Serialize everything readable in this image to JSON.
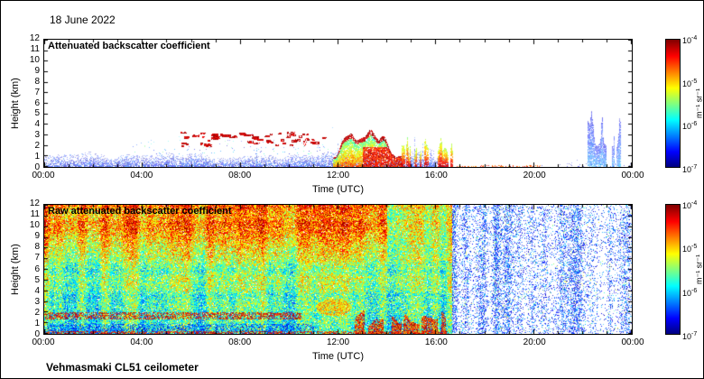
{
  "page": {
    "date_label": "18 June 2022",
    "footer": "Vehmasmaki CL51 ceilometer"
  },
  "colors": {
    "axis": "#000000",
    "background": "#ffffff",
    "jet_stops": [
      "#000080 0%",
      "#0000ff 12%",
      "#00ffff 37%",
      "#ffff00 62%",
      "#ff0000 87%",
      "#800000 100%"
    ]
  },
  "chart_data": [
    {
      "type": "heatmap",
      "title": "Attenuated backscatter coefficient",
      "xlabel": "Time (UTC)",
      "ylabel": "Height (km)",
      "x_range_hours": [
        0,
        24
      ],
      "y_range_km": [
        0,
        12
      ],
      "x_ticks": [
        "00:00",
        "04:00",
        "08:00",
        "12:00",
        "16:00",
        "20:00",
        "00:00"
      ],
      "y_ticks": [
        0,
        1,
        2,
        3,
        4,
        5,
        6,
        7,
        8,
        9,
        10,
        11,
        12
      ],
      "colorbar": {
        "scale": "log",
        "min_value": "1e-7",
        "max_value": "1e-4",
        "tick_exponents": [
          "-4",
          "-5",
          "-6",
          "-7"
        ],
        "unit": "m⁻¹ sr⁻¹",
        "colormap": "jet"
      },
      "background": "white below noise threshold",
      "features": [
        {
          "name": "surface aerosol layer",
          "hours": [
            0,
            16.5
          ],
          "height_km": [
            0,
            1.5
          ],
          "backscatter": "1e-7 to 1e-6",
          "render": {
            "kind": "speckle",
            "density": 0.8,
            "level": [
              0.02,
              0.26
            ],
            "pale": true
          }
        },
        {
          "name": "scattered aerosol specks",
          "hours": [
            3.5,
            11.8
          ],
          "height_km": [
            1.2,
            3.0
          ],
          "backscatter": "1e-7 to 1e-6",
          "render": {
            "kind": "speckle",
            "density": 0.05,
            "level": [
              0.05,
              0.5
            ],
            "pale": true
          }
        },
        {
          "name": "scattered low clouds",
          "hours": [
            5.5,
            11.5
          ],
          "height_km": [
            2.0,
            3.3
          ],
          "backscatter": "about 1e-4",
          "render": {
            "kind": "dashes",
            "count": 55,
            "level": [
              0.86,
              1.0
            ]
          }
        },
        {
          "name": "midday convective plume with cloud",
          "hours": [
            11.8,
            14.6
          ],
          "height_km": [
            0,
            4.0
          ],
          "backscatter": "1e-6 to 1e-4",
          "render": {
            "kind": "plume",
            "level": [
              0.45,
              1.0
            ]
          }
        },
        {
          "name": "afternoon broken cells",
          "hours": [
            14.6,
            16.7
          ],
          "height_km": [
            0,
            3.0
          ],
          "backscatter": "1e-6 to 1e-4",
          "render": {
            "kind": "columns",
            "gap": 0.45,
            "level": [
              0.4,
              0.95
            ],
            "pale": false
          }
        },
        {
          "name": "surface returns",
          "hours": [
            16.5,
            20.3
          ],
          "height_km": [
            0,
            0.25
          ],
          "backscatter": "about 1e-5",
          "render": {
            "kind": "speckle",
            "density": 0.5,
            "level": [
              0.7,
              0.95
            ],
            "pale": false
          }
        },
        {
          "name": "late evening weak echoes",
          "hours": [
            22.1,
            23.6
          ],
          "height_km": [
            0,
            5.5
          ],
          "backscatter": "1e-7 to 1e-6",
          "render": {
            "kind": "columns",
            "gap": 0.5,
            "level": [
              0.05,
              0.28
            ],
            "pale": true
          }
        },
        {
          "name": "night sparse near-surface",
          "hours": [
            20,
            24
          ],
          "height_km": [
            0,
            0.6
          ],
          "backscatter": "about 1e-7",
          "render": {
            "kind": "speckle",
            "density": 0.1,
            "level": [
              0.02,
              0.2
            ],
            "pale": true
          }
        }
      ]
    },
    {
      "type": "heatmap",
      "title": "Raw attenuated backscatter coefficient",
      "xlabel": "Time (UTC)",
      "ylabel": "Height (km)",
      "x_range_hours": [
        0,
        24
      ],
      "y_range_km": [
        0,
        12
      ],
      "x_ticks": [
        "00:00",
        "04:00",
        "08:00",
        "12:00",
        "16:00",
        "20:00",
        "00:00"
      ],
      "y_ticks": [
        0,
        1,
        2,
        3,
        4,
        5,
        6,
        7,
        8,
        9,
        10,
        11,
        12
      ],
      "colorbar": {
        "scale": "log",
        "min_value": "1e-7",
        "max_value": "1e-4",
        "tick_exponents": [
          "-4",
          "-5",
          "-6",
          "-7"
        ],
        "unit": "m⁻¹ sr⁻¹",
        "colormap": "jet"
      },
      "render": {
        "transition_hour": 16.6,
        "base": 0.4,
        "height_gradient": 0.22,
        "upper_boost": {
          "hours": [
            0,
            14
          ],
          "km_from": 6.5,
          "boost": 0.16
        },
        "speckle_density": 0.55
      },
      "features": [
        {
          "name": "daytime solar background noise",
          "hours": [
            0,
            16.6
          ],
          "height_km": [
            0,
            12
          ],
          "value": "green-yellow-orange noise over full column"
        },
        {
          "name": "enhanced noise aloft",
          "hours": [
            0,
            14
          ],
          "height_km": [
            6.5,
            12
          ],
          "value": "orange-red noise band"
        },
        {
          "name": "night clean background",
          "hours": [
            16.6,
            24
          ],
          "height_km": [
            0,
            12
          ],
          "value": "white with blue speckle and vertical stripes"
        },
        {
          "name": "near-surface layer",
          "hours": [
            0,
            11
          ],
          "height_km": [
            0,
            0.95
          ],
          "render": {
            "kind": "band",
            "density": 0.38,
            "level": [
              0.04,
              0.3
            ]
          }
        },
        {
          "name": "boundary layer top band",
          "hours": [
            0,
            10.5
          ],
          "height_km": [
            1.35,
            2.05
          ],
          "render": {
            "kind": "band",
            "density": 0.5,
            "level": [
              0.8,
              1.0
            ]
          }
        },
        {
          "name": "surface echo",
          "hours": [
            0,
            16.5
          ],
          "height_km": [
            0,
            0.3
          ],
          "render": {
            "kind": "band",
            "density": 0.55,
            "level": [
              0.75,
              1.0
            ]
          }
        },
        {
          "name": "midday plume echo",
          "hours": [
            11.1,
            12.5
          ],
          "height_km": [
            1.7,
            3.3
          ],
          "render": {
            "kind": "blob",
            "density": 0.85,
            "level": [
              0.55,
              0.82
            ]
          }
        },
        {
          "name": "strong afternoon low echoes",
          "hours": [
            12.7,
            16.4
          ],
          "height_km": [
            0,
            2.3
          ],
          "render": {
            "kind": "ragged",
            "density": 0.8,
            "level": [
              0.7,
              1.0
            ]
          }
        }
      ]
    }
  ]
}
